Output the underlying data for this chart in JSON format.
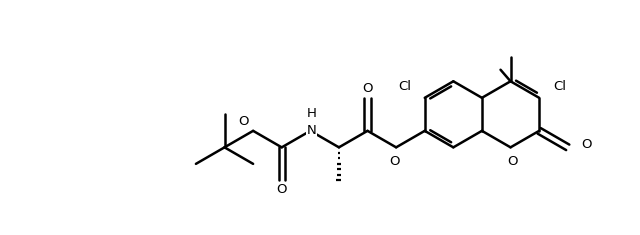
{
  "bg": "#ffffff",
  "lc": "#000000",
  "lw": 1.8,
  "figsize": [
    6.4,
    2.35
  ],
  "dpi": 100,
  "xlim": [
    0,
    10
  ],
  "ylim": [
    0,
    3.7
  ],
  "bl": 0.52
}
